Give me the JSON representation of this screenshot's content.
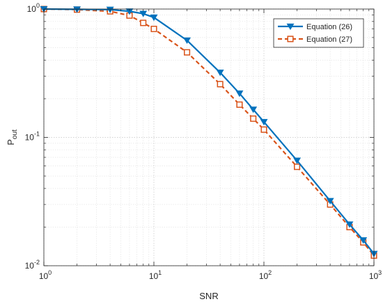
{
  "chart_data": {
    "type": "line",
    "title": "",
    "xlabel": "SNR",
    "ylabel": "P_out",
    "ylabel_main": "P",
    "ylabel_sub": "out",
    "xscale": "log",
    "yscale": "log",
    "xlim": [
      1,
      1000
    ],
    "ylim": [
      0.01,
      1
    ],
    "grid": true,
    "minor_grid": true,
    "legend_position": "top-right",
    "x_ticks": [
      {
        "value": 1,
        "base": "10",
        "exp": "0"
      },
      {
        "value": 10,
        "base": "10",
        "exp": "1"
      },
      {
        "value": 100,
        "base": "10",
        "exp": "2"
      },
      {
        "value": 1000,
        "base": "10",
        "exp": "3"
      }
    ],
    "y_ticks": [
      {
        "value": 0.01,
        "base": "10",
        "exp": "-2"
      },
      {
        "value": 0.1,
        "base": "10",
        "exp": "-1"
      },
      {
        "value": 1,
        "base": "10",
        "exp": "0"
      }
    ],
    "series": [
      {
        "name": "Equation (26)",
        "color": "#0072BD",
        "line_style": "solid",
        "marker": "triangle-down-filled",
        "x": [
          1,
          2,
          4,
          6,
          8,
          10,
          20,
          40,
          60,
          80,
          100,
          200,
          400,
          600,
          800,
          1000
        ],
        "y": [
          1.0,
          0.995,
          0.99,
          0.96,
          0.92,
          0.86,
          0.57,
          0.32,
          0.22,
          0.165,
          0.132,
          0.066,
          0.032,
          0.021,
          0.0158,
          0.0124
        ]
      },
      {
        "name": "Equation (27)",
        "color": "#D95319",
        "line_style": "dashed",
        "marker": "square-open",
        "x": [
          1,
          2,
          4,
          6,
          8,
          10,
          20,
          40,
          60,
          80,
          100,
          200,
          400,
          600,
          800,
          1000
        ],
        "y": [
          1.0,
          0.99,
          0.96,
          0.89,
          0.78,
          0.7,
          0.46,
          0.26,
          0.18,
          0.14,
          0.115,
          0.059,
          0.03,
          0.02,
          0.0152,
          0.012
        ]
      }
    ]
  }
}
